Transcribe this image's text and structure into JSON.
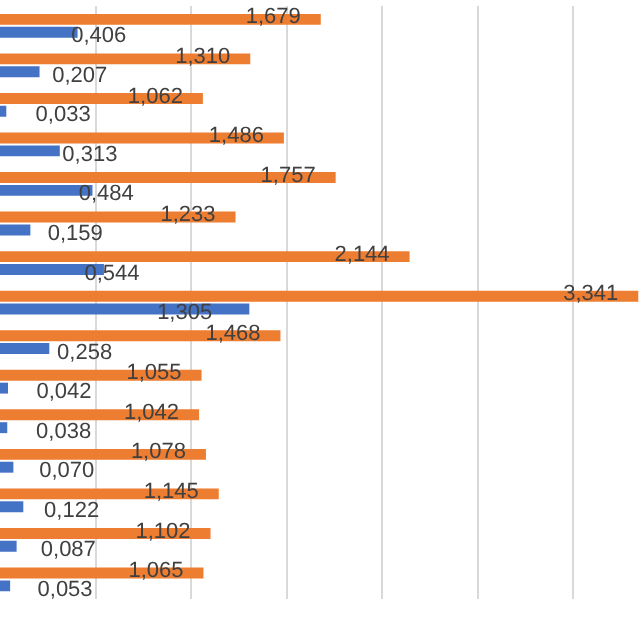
{
  "chart_data": {
    "type": "bar",
    "orientation": "horizontal",
    "categories": [
      null,
      null,
      null,
      null,
      null,
      null,
      null,
      null,
      null,
      null,
      null,
      null,
      null,
      null,
      null
    ],
    "series": [
      {
        "color": "#ed7d31",
        "values": [
          1.679,
          1.31,
          1.062,
          1.486,
          1.757,
          1.233,
          2.144,
          3.341,
          1.468,
          1.055,
          1.042,
          1.078,
          1.145,
          1.102,
          1.065
        ],
        "value_labels": [
          "1,679",
          "1,310",
          "1,062",
          "1,486",
          "1,757",
          "1,233",
          "2,144",
          "3,341",
          "1,468",
          "1,055",
          "1,042",
          "1,078",
          "1,145",
          "1,102",
          "1,065"
        ]
      },
      {
        "color": "#4472c4",
        "values": [
          0.406,
          0.207,
          0.033,
          0.313,
          0.484,
          0.159,
          0.544,
          1.305,
          0.258,
          0.042,
          0.038,
          0.07,
          0.122,
          0.087,
          0.053
        ],
        "value_labels": [
          "0,406",
          "0,207",
          "0,033",
          "0,313",
          "0,484",
          "0,159",
          "0,544",
          "1,305",
          "0,258",
          "0,042",
          "0,038",
          "0,070",
          "0,122",
          "0,087",
          "0,053"
        ]
      }
    ],
    "xlim": [
      0,
      3.35
    ],
    "xticks": [
      {
        "value": 0.5,
        "label": null
      },
      {
        "value": 1,
        "label": null
      },
      {
        "value": 1.5,
        "label": null
      },
      {
        "value": 2,
        "label": null
      },
      {
        "value": 2.5,
        "label": null
      },
      {
        "value": 3,
        "label": null
      }
    ],
    "grid": "x",
    "legend": false
  }
}
